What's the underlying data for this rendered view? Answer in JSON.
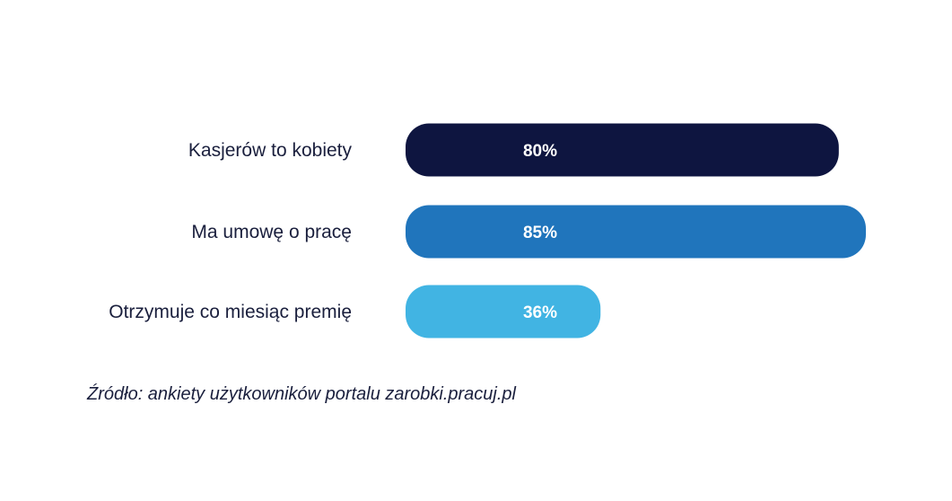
{
  "chart_data": {
    "type": "bar",
    "orientation": "horizontal",
    "categories": [
      "Kasjerów to kobiety",
      "Ma umowę o pracę",
      "Otrzymuje co miesiąc premię"
    ],
    "values": [
      80,
      85,
      36
    ],
    "value_labels": [
      "80%",
      "85%",
      "36%"
    ],
    "colors": [
      "#0e1540",
      "#2075bc",
      "#41b4e3"
    ],
    "grid": false,
    "legend": false
  },
  "source": "Źródło: ankiety użytkowników portalu zarobki.pracuj.pl"
}
